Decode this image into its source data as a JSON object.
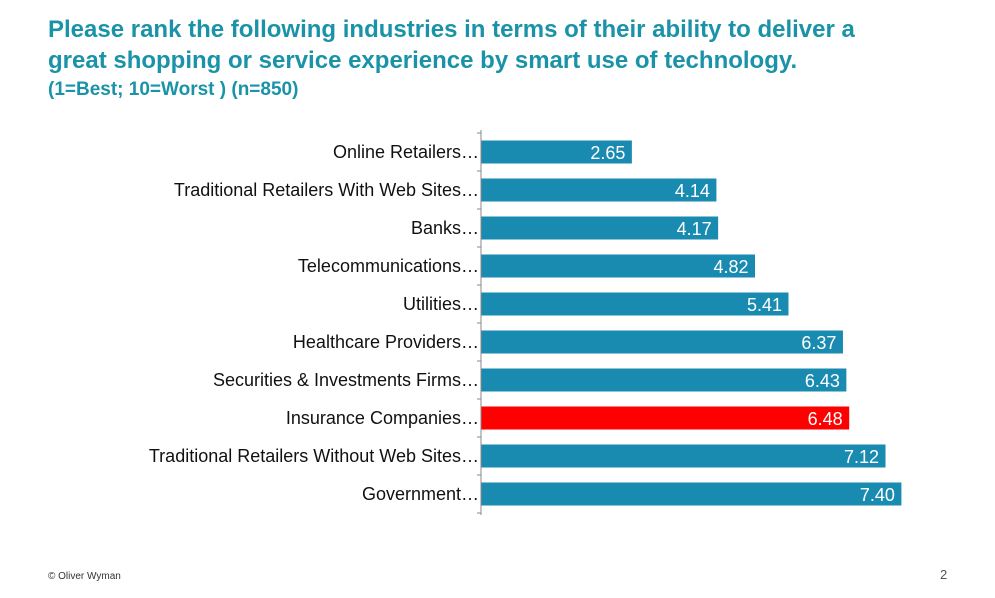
{
  "title": {
    "line1": "Please rank the following industries in terms of their ability to deliver a",
    "line2": "great shopping or service experience by smart use of technology.",
    "subtitle": "(1=Best; 10=Worst )  (n=850)"
  },
  "chart_data": {
    "type": "bar",
    "orientation": "horizontal",
    "title": "Please rank the following industries in terms of their ability to deliver a great shopping or service experience by smart use of technology.",
    "subtitle": "(1=Best; 10=Worst )  (n=850)",
    "xlabel": "",
    "ylabel": "",
    "xlim": [
      0,
      8.6
    ],
    "grid": false,
    "legend": "none",
    "colors": {
      "default": "#1a8bb0",
      "highlight": "#ff0000",
      "axis": "#888888",
      "value_text": "#ffffff"
    },
    "categories": [
      "Online Retailers…",
      "Traditional Retailers With Web Sites…",
      "Banks…",
      "Telecommunications…",
      "Utilities…",
      "Healthcare Providers…",
      "Securities & Investments Firms…",
      "Insurance Companies…",
      "Traditional Retailers Without Web Sites…",
      "Government…"
    ],
    "values": [
      2.65,
      4.14,
      4.17,
      4.82,
      5.41,
      6.37,
      6.43,
      6.48,
      7.12,
      7.4
    ],
    "value_labels": [
      "2.65",
      "4.14",
      "4.17",
      "4.82",
      "5.41",
      "6.37",
      "6.43",
      "6.48",
      "7.12",
      "7.40"
    ],
    "highlighted_category": "Insurance Companies…"
  },
  "footer": {
    "copyright": "© Oliver Wyman",
    "page_number": "2"
  }
}
